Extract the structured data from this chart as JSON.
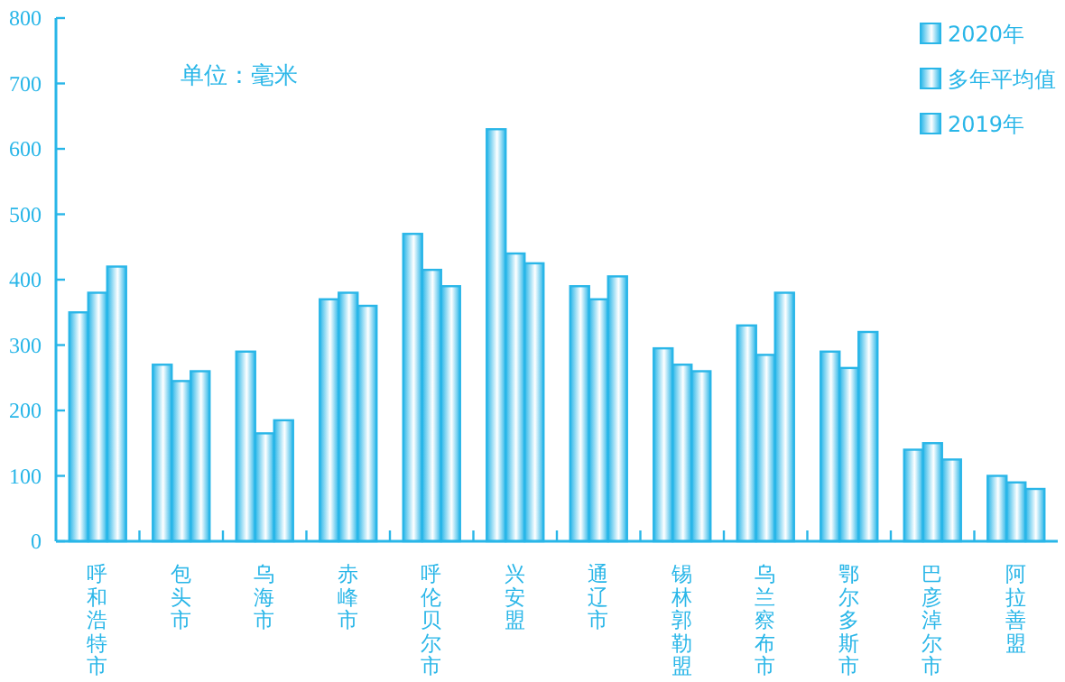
{
  "chart_data": {
    "type": "bar",
    "annotations": [
      "单位：毫米"
    ],
    "categories": [
      "呼和浩特市",
      "包头市",
      "乌海市",
      "赤峰市",
      "呼伦贝尔市",
      "兴安盟",
      "通辽市",
      "锡林郭勒盟",
      "乌兰察布市",
      "鄂尔多斯市",
      "巴彦淖尔市",
      "阿拉善盟"
    ],
    "series": [
      {
        "name": "2020年",
        "color": "#29b6e8",
        "values": [
          350,
          270,
          290,
          370,
          470,
          630,
          390,
          295,
          330,
          290,
          140,
          100
        ]
      },
      {
        "name": "多年平均值",
        "color": "#29b6e8",
        "values": [
          380,
          245,
          165,
          380,
          415,
          440,
          370,
          270,
          285,
          265,
          150,
          90
        ]
      },
      {
        "name": "2019年",
        "color": "#29b6e8",
        "values": [
          420,
          260,
          185,
          360,
          390,
          425,
          405,
          260,
          380,
          320,
          125,
          80
        ]
      }
    ],
    "ylim": [
      0,
      800
    ],
    "yticks": [
      0,
      100,
      200,
      300,
      400,
      500,
      600,
      700,
      800
    ],
    "legend": "top right"
  }
}
